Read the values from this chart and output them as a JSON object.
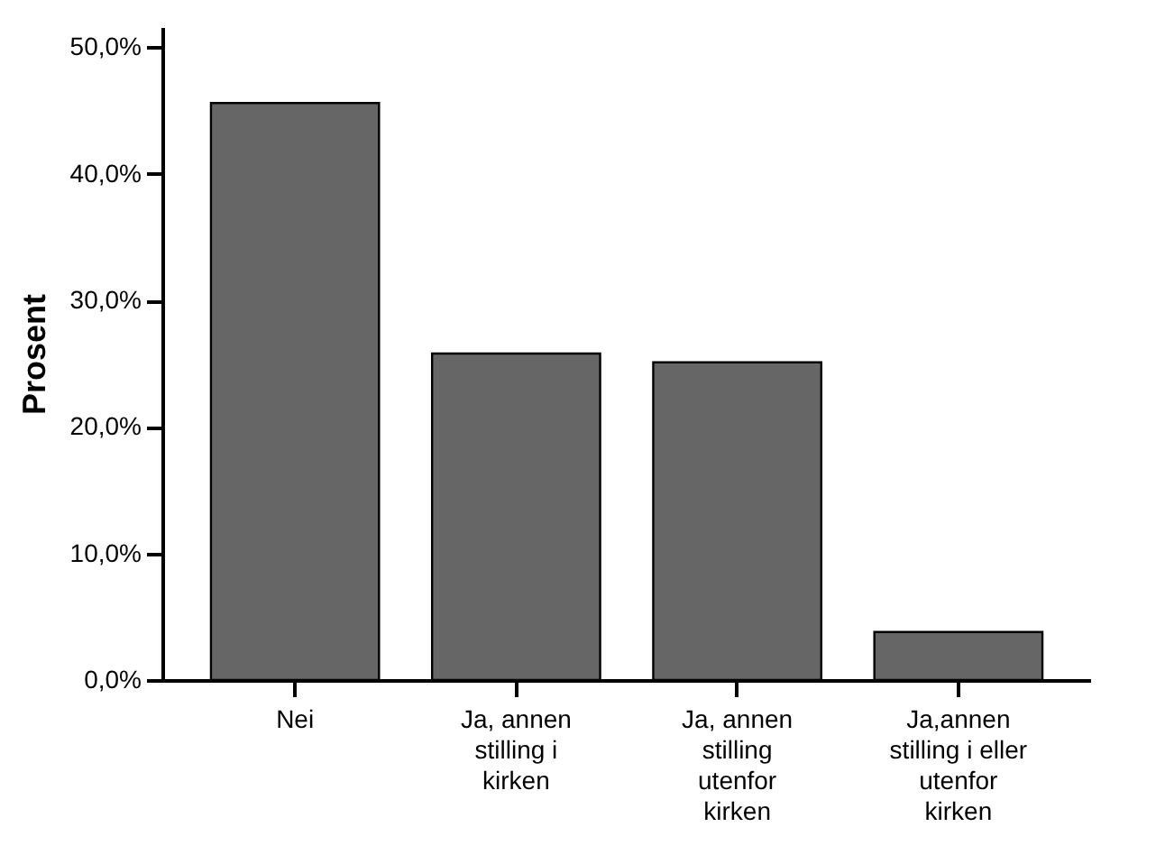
{
  "chart_data": {
    "type": "bar",
    "ylabel": "Prosent",
    "categories": [
      "Nei",
      "Ja, annen stilling i kirken",
      "Ja, annen stilling utenfor kirken",
      "Ja,annen stilling i eller utenfor kirken"
    ],
    "values": [
      45.6,
      25.8,
      25.1,
      3.8
    ],
    "color": "#666666",
    "ylim": [
      0,
      51.6
    ],
    "yticks": [
      {
        "value": 0,
        "label": "0,0%"
      },
      {
        "value": 10,
        "label": "10,0%"
      },
      {
        "value": 20,
        "label": "20,0%"
      },
      {
        "value": 30,
        "label": "30,0%"
      },
      {
        "value": 40,
        "label": "40,0%"
      },
      {
        "value": 50,
        "label": "50,0%"
      }
    ],
    "grid": false
  }
}
